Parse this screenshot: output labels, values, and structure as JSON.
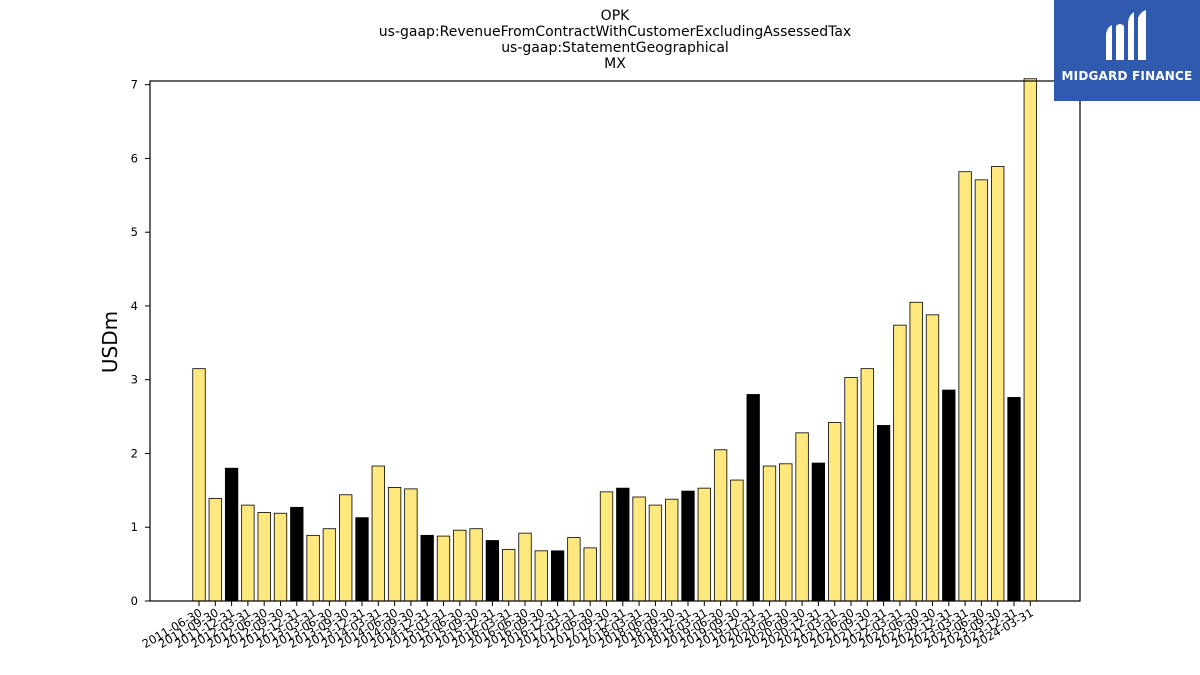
{
  "chart_data": {
    "type": "bar",
    "title": [
      "OPK",
      "us-gaap:RevenueFromContractWithCustomerExcludingAssessedTax",
      "us-gaap:StatementGeographical",
      "MX"
    ],
    "xlabel": "",
    "ylabel": "USDm",
    "ylim": [
      0,
      7.05
    ],
    "yticks": [
      0,
      1,
      2,
      3,
      4,
      5,
      6,
      7
    ],
    "grid": false,
    "colors": {
      "quarter": "#ffe97f",
      "year_end": "#000000",
      "edge": "#000000"
    },
    "categories": [
      "2011-06-30",
      "2011-09-30",
      "2011-12-31",
      "2012-03-31",
      "2012-06-30",
      "2012-09-30",
      "2012-12-31",
      "2013-03-31",
      "2013-06-30",
      "2013-09-30",
      "2013-12-31",
      "2014-03-31",
      "2014-06-30",
      "2014-09-30",
      "2014-12-31",
      "2015-03-31",
      "2015-06-30",
      "2015-09-30",
      "2015-12-31",
      "2016-03-31",
      "2016-06-30",
      "2016-09-30",
      "2016-12-31",
      "2017-03-31",
      "2017-06-30",
      "2017-09-30",
      "2017-12-31",
      "2018-03-31",
      "2018-06-30",
      "2018-09-30",
      "2018-12-31",
      "2019-03-31",
      "2019-06-30",
      "2019-09-30",
      "2019-12-31",
      "2020-03-31",
      "2020-06-30",
      "2020-09-30",
      "2020-12-31",
      "2021-03-31",
      "2021-06-30",
      "2021-09-30",
      "2021-12-31",
      "2022-03-31",
      "2022-06-30",
      "2022-09-30",
      "2022-12-31",
      "2023-03-31",
      "2023-06-30",
      "2023-09-30",
      "2023-12-31",
      "2024-03-31"
    ],
    "values": [
      3.15,
      1.39,
      1.8,
      1.3,
      1.2,
      1.19,
      1.27,
      0.89,
      0.98,
      1.44,
      1.13,
      1.83,
      1.54,
      1.52,
      0.89,
      0.88,
      0.96,
      0.98,
      0.82,
      0.7,
      0.92,
      0.68,
      0.68,
      0.86,
      0.72,
      1.48,
      1.53,
      1.41,
      1.3,
      1.38,
      1.49,
      1.53,
      2.05,
      1.64,
      2.8,
      1.83,
      1.86,
      2.28,
      1.87,
      2.42,
      3.03,
      3.15,
      2.38,
      3.74,
      4.05,
      3.88,
      2.86,
      5.82,
      5.71,
      5.89,
      2.76,
      7.08
    ]
  },
  "logo": {
    "text": "MIDGARD FINANCE",
    "color": "#2f5aae"
  }
}
